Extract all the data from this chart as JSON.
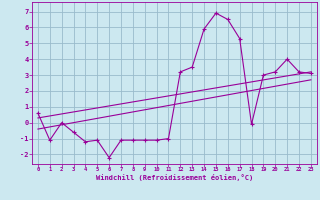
{
  "xlabel": "Windchill (Refroidissement éolien,°C)",
  "bg_color": "#cce8f0",
  "line_color": "#990099",
  "grid_color": "#99bbcc",
  "x_values": [
    0,
    1,
    2,
    3,
    4,
    5,
    6,
    7,
    8,
    9,
    10,
    11,
    12,
    13,
    14,
    15,
    16,
    17,
    18,
    19,
    20,
    21,
    22,
    23
  ],
  "main_line": [
    0.6,
    -1.1,
    0.0,
    -0.6,
    -1.2,
    -1.1,
    -2.2,
    -1.1,
    -1.1,
    -1.1,
    -1.1,
    -1.0,
    3.2,
    3.5,
    5.9,
    6.9,
    6.5,
    5.3,
    -0.1,
    3.0,
    3.2,
    4.0,
    3.2,
    3.1
  ],
  "trend1_x": [
    0,
    23
  ],
  "trend1_y": [
    0.3,
    3.2
  ],
  "trend2_x": [
    0,
    23
  ],
  "trend2_y": [
    -0.4,
    2.7
  ],
  "ylim": [
    -2.6,
    7.6
  ],
  "xlim": [
    -0.5,
    23.5
  ],
  "yticks": [
    -2,
    -1,
    0,
    1,
    2,
    3,
    4,
    5,
    6,
    7
  ],
  "xticks": [
    0,
    1,
    2,
    3,
    4,
    5,
    6,
    7,
    8,
    9,
    10,
    11,
    12,
    13,
    14,
    15,
    16,
    17,
    18,
    19,
    20,
    21,
    22,
    23
  ]
}
